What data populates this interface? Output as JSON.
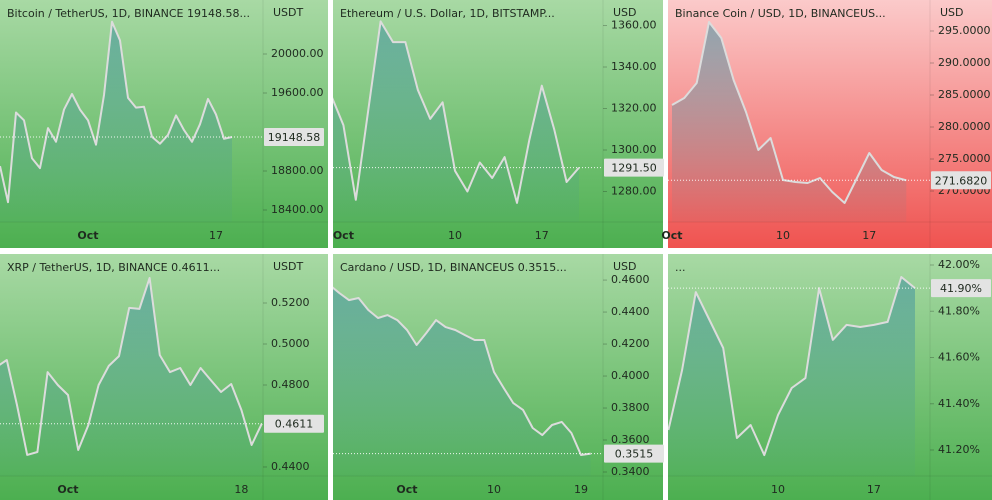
{
  "chart_data": [
    {
      "type": "area",
      "title": "Bitcoin / TetherUS, 1D, BINANCE  19148.58...",
      "unit": "USDT",
      "background": [
        "#a8d9a4",
        "#4caf50"
      ],
      "color": "#dcdcdc",
      "categories": [
        null,
        null,
        null,
        null,
        null,
        null,
        null,
        null,
        null,
        null,
        null,
        "Oct",
        null,
        null,
        null,
        null,
        null,
        null,
        null,
        null,
        null,
        null,
        null,
        null,
        null,
        null,
        null,
        "17",
        null,
        null
      ],
      "values": [
        18850,
        18480,
        19400,
        19320,
        18930,
        18830,
        19240,
        19100,
        19430,
        19590,
        19430,
        19320,
        19070,
        19580,
        20330,
        20140,
        19550,
        19450,
        19460,
        19150,
        19080,
        19170,
        19370,
        19220,
        19100,
        19280,
        19540,
        19380,
        19130,
        19148.58
      ],
      "price_label": "19148.58",
      "ylim": [
        18277,
        20554
      ],
      "yticks": [
        {
          "value": 20000,
          "label": "20000.00"
        },
        {
          "value": 19600,
          "label": "19600.00"
        },
        {
          "value": 18800,
          "label": "18800.00"
        },
        {
          "value": 18400,
          "label": "18400.00"
        }
      ]
    },
    {
      "type": "area",
      "title": "Ethereum / U.S. Dollar, 1D, BITSTAMP...",
      "unit": "USD",
      "background": [
        "#a8d9a4",
        "#4caf50"
      ],
      "color": "#dcdcdc",
      "categories": [
        null,
        "Oct",
        null,
        null,
        null,
        null,
        null,
        null,
        null,
        null,
        "10",
        null,
        null,
        null,
        null,
        null,
        null,
        "17",
        null,
        null,
        null
      ],
      "values": [
        1326.5,
        1312,
        1276,
        1319,
        1362,
        1352,
        1352,
        1329,
        1315,
        1323,
        1290,
        1280,
        1294,
        1286.5,
        1296.6,
        1274.5,
        1305,
        1331,
        1310,
        1284.6,
        1291.5
      ],
      "price_label": "1291.50",
      "ylim": [
        1265.3,
        1372.3
      ],
      "yticks": [
        {
          "value": 1360,
          "label": "1360.00"
        },
        {
          "value": 1340,
          "label": "1340.00"
        },
        {
          "value": 1320,
          "label": "1320.00"
        },
        {
          "value": 1300,
          "label": "1300.00"
        },
        {
          "value": 1280,
          "label": "1280.00"
        }
      ]
    },
    {
      "type": "area",
      "title": "Binance Coin / USD, 1D, BINANCEUS...",
      "unit": "USD",
      "background": [
        "#fbcaca",
        "#ef5350"
      ],
      "color": "#dcdcdc",
      "categories": [
        "Oct",
        null,
        null,
        null,
        null,
        null,
        null,
        null,
        null,
        "10",
        null,
        null,
        null,
        null,
        null,
        null,
        "17",
        null,
        null,
        null
      ],
      "values": [
        283.44,
        284.53,
        286.88,
        296.41,
        293.91,
        287.34,
        282.34,
        276.41,
        278.28,
        271.72,
        271.41,
        271.25,
        272.03,
        269.84,
        268.13,
        272.03,
        275.94,
        273.28,
        272.19,
        271.682
      ],
      "price_label": "271.6820",
      "ylim": [
        265.16,
        299.84
      ],
      "yticks": [
        {
          "value": 295,
          "label": "295.0000"
        },
        {
          "value": 290,
          "label": "290.0000"
        },
        {
          "value": 285,
          "label": "285.0000"
        },
        {
          "value": 280,
          "label": "280.0000"
        },
        {
          "value": 275,
          "label": "275.0000"
        },
        {
          "value": 270,
          "label": "270.0000"
        }
      ]
    },
    {
      "type": "area",
      "title": "XRP / TetherUS, 1D, BINANCE  0.4611...",
      "unit": "USDT",
      "background": [
        "#a8d9a4",
        "#4caf50"
      ],
      "color": "#dcdcdc",
      "categories": [
        null,
        null,
        null,
        null,
        null,
        null,
        null,
        "Oct",
        null,
        null,
        null,
        null,
        null,
        null,
        null,
        null,
        null,
        null,
        null,
        null,
        null,
        null,
        null,
        null,
        "18",
        null,
        null
      ],
      "values": [
        0.4888,
        0.4922,
        0.4702,
        0.4459,
        0.4473,
        0.4863,
        0.48,
        0.4751,
        0.4483,
        0.4605,
        0.48,
        0.4893,
        0.4941,
        0.5176,
        0.5171,
        0.5322,
        0.4946,
        0.4863,
        0.4883,
        0.48,
        0.4883,
        0.4824,
        0.4766,
        0.4805,
        0.4678,
        0.4507,
        0.4611
      ],
      "price_label": "0.4611",
      "ylim": [
        0.4356,
        0.5439
      ],
      "yticks": [
        {
          "value": 0.52,
          "label": "0.5200"
        },
        {
          "value": 0.5,
          "label": "0.5000"
        },
        {
          "value": 0.48,
          "label": "0.4800"
        },
        {
          "value": 0.44,
          "label": "0.4400"
        }
      ]
    },
    {
      "type": "area",
      "title": "Cardano / USD, 1D, BINANCEUS  0.3515...",
      "unit": "USD",
      "background": [
        "#a8d9a4",
        "#4caf50"
      ],
      "color": "#dcdcdc",
      "categories": [
        null,
        null,
        null,
        null,
        null,
        null,
        null,
        null,
        "Oct",
        null,
        null,
        null,
        null,
        null,
        null,
        null,
        null,
        "10",
        null,
        null,
        null,
        null,
        null,
        null,
        null,
        null,
        "19",
        null
      ],
      "values": [
        0.4569,
        0.4519,
        0.4475,
        0.4488,
        0.4413,
        0.4363,
        0.4381,
        0.435,
        0.4288,
        0.4194,
        0.4269,
        0.435,
        0.4306,
        0.4288,
        0.4256,
        0.4225,
        0.4225,
        0.4025,
        0.3925,
        0.3831,
        0.3788,
        0.3675,
        0.3631,
        0.3694,
        0.3713,
        0.3644,
        0.3506,
        0.3515
      ],
      "price_label": "0.3515",
      "ylim": [
        0.3375,
        0.4763
      ],
      "yticks": [
        {
          "value": 0.46,
          "label": "0.4600"
        },
        {
          "value": 0.44,
          "label": "0.4400"
        },
        {
          "value": 0.42,
          "label": "0.4200"
        },
        {
          "value": 0.4,
          "label": "0.4000"
        },
        {
          "value": 0.38,
          "label": "0.3800"
        },
        {
          "value": 0.36,
          "label": "0.3600"
        },
        {
          "value": 0.34,
          "label": "0.3400"
        }
      ]
    },
    {
      "type": "area",
      "title": "...",
      "background": [
        "#a8d9a4",
        "#4caf50"
      ],
      "color": "#dcdcdc",
      "categories": [
        null,
        null,
        null,
        null,
        null,
        null,
        null,
        null,
        "10",
        null,
        null,
        null,
        null,
        null,
        null,
        "17",
        null,
        null,
        null
      ],
      "values": [
        41.2865,
        41.546,
        41.883,
        41.762,
        41.641,
        41.252,
        41.308,
        41.178,
        41.351,
        41.468,
        41.511,
        41.9,
        41.676,
        41.741,
        41.732,
        41.741,
        41.754,
        41.948,
        41.9
      ],
      "price_label": "41.90%",
      "ylim": [
        41.0876,
        42.0476
      ],
      "yticks": [
        {
          "value": 42,
          "label": "42.00%"
        },
        {
          "value": 41.8,
          "label": "41.80%"
        },
        {
          "value": 41.6,
          "label": "41.60%"
        },
        {
          "value": 41.4,
          "label": "41.40%"
        },
        {
          "value": 41.2,
          "label": "41.20%"
        }
      ]
    }
  ]
}
